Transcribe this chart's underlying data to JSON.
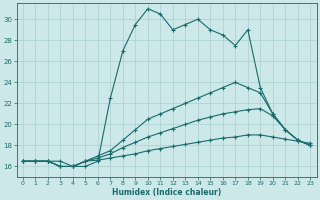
{
  "xlabel": "Humidex (Indice chaleur)",
  "bg_color": "#cce8e8",
  "grid_color": "#aacfcf",
  "line_color": "#1a6b6b",
  "xlim": [
    -0.5,
    23.5
  ],
  "ylim": [
    15.0,
    31.5
  ],
  "xticks": [
    0,
    1,
    2,
    3,
    4,
    5,
    6,
    7,
    8,
    9,
    10,
    11,
    12,
    13,
    14,
    15,
    16,
    17,
    18,
    19,
    20,
    21,
    22,
    23
  ],
  "yticks": [
    16,
    18,
    20,
    22,
    24,
    26,
    28,
    30
  ],
  "line1_x": [
    0,
    1,
    2,
    3,
    4,
    5,
    6,
    7,
    8,
    9,
    10,
    11,
    12,
    13,
    14,
    15,
    16,
    17,
    18,
    19,
    20,
    21,
    22,
    23
  ],
  "line1_y": [
    16.5,
    16.5,
    16.5,
    16.5,
    16.0,
    16.0,
    16.5,
    22.5,
    27.0,
    29.5,
    31.0,
    30.5,
    29.0,
    29.5,
    30.0,
    29.0,
    28.5,
    27.5,
    29.0,
    23.5,
    21.0,
    19.5,
    18.5,
    18.0
  ],
  "line2_x": [
    0,
    1,
    2,
    3,
    4,
    5,
    6,
    7,
    8,
    9,
    10,
    11,
    12,
    13,
    14,
    15,
    16,
    17,
    18,
    19,
    20,
    21,
    22,
    23
  ],
  "line2_y": [
    16.5,
    16.5,
    16.5,
    16.0,
    16.0,
    16.5,
    17.0,
    17.5,
    18.5,
    19.5,
    20.5,
    21.0,
    21.5,
    22.0,
    22.5,
    23.0,
    23.5,
    24.0,
    23.5,
    23.0,
    21.0,
    19.5,
    18.5,
    18.0
  ],
  "line3_x": [
    0,
    1,
    2,
    3,
    4,
    5,
    6,
    7,
    8,
    9,
    10,
    11,
    12,
    13,
    14,
    15,
    16,
    17,
    18,
    19,
    20,
    21,
    22,
    23
  ],
  "line3_y": [
    16.5,
    16.5,
    16.5,
    16.0,
    16.0,
    16.5,
    16.8,
    17.2,
    17.8,
    18.3,
    18.8,
    19.2,
    19.6,
    20.0,
    20.4,
    20.7,
    21.0,
    21.2,
    21.4,
    21.5,
    20.8,
    19.5,
    18.5,
    18.0
  ],
  "line4_x": [
    0,
    1,
    2,
    3,
    4,
    5,
    6,
    7,
    8,
    9,
    10,
    11,
    12,
    13,
    14,
    15,
    16,
    17,
    18,
    19,
    20,
    21,
    22,
    23
  ],
  "line4_y": [
    16.5,
    16.5,
    16.5,
    16.0,
    16.0,
    16.5,
    16.6,
    16.8,
    17.0,
    17.2,
    17.5,
    17.7,
    17.9,
    18.1,
    18.3,
    18.5,
    18.7,
    18.8,
    19.0,
    19.0,
    18.8,
    18.6,
    18.4,
    18.2
  ]
}
